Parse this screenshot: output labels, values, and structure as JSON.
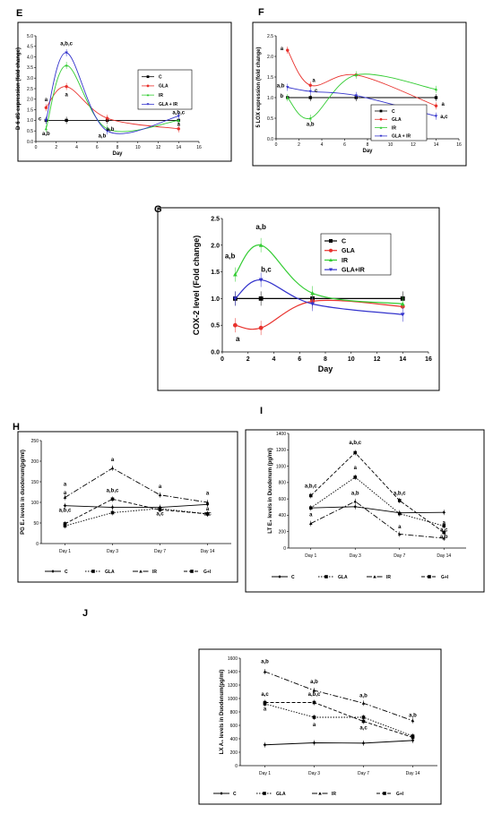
{
  "chart_data": [
    {
      "panel": "E",
      "type": "line",
      "ylabel": "D-6-dS expression (fold change)",
      "xlabel": "Day",
      "x_ticks": [
        "0",
        "2",
        "4",
        "6",
        "8",
        "10",
        "12",
        "14",
        "16"
      ],
      "y_ticks": [
        "0.0",
        "0.5",
        "1.0",
        "1.5",
        "2.0",
        "2.5",
        "3.0",
        "3.5",
        "4.0",
        "4.5",
        "5.0"
      ],
      "xlim": [
        0,
        16
      ],
      "ylim": [
        0,
        5
      ],
      "legend": {
        "position": "right",
        "entries": [
          "C",
          "GLA",
          "IR",
          "GLA + IR"
        ]
      },
      "colors": {
        "C": "#000000",
        "GLA": "#e8322d",
        "IR": "#33cc33",
        "GLA + IR": "#3333cc"
      },
      "series": [
        {
          "name": "C",
          "x": [
            1,
            3,
            7,
            14
          ],
          "y": [
            1.0,
            1.0,
            1.0,
            1.0
          ]
        },
        {
          "name": "GLA",
          "x": [
            1,
            3,
            7,
            14
          ],
          "y": [
            1.6,
            2.6,
            1.1,
            0.6
          ]
        },
        {
          "name": "IR",
          "x": [
            1,
            3,
            7,
            14
          ],
          "y": [
            0.6,
            3.6,
            0.6,
            1.0
          ]
        },
        {
          "name": "GLA + IR",
          "x": [
            1,
            3,
            7,
            14
          ],
          "y": [
            1.0,
            4.2,
            0.5,
            1.2
          ]
        }
      ],
      "annotations": [
        {
          "text": "a,b,c",
          "x": 3,
          "y": 4.55
        },
        {
          "text": "a",
          "x": 3,
          "y": 2.15
        },
        {
          "text": "a",
          "x": 1,
          "y": 1.9
        },
        {
          "text": "c",
          "x": 0.4,
          "y": 1.0
        },
        {
          "text": "a,b",
          "x": 1,
          "y": 0.3
        },
        {
          "text": "a,b",
          "x": 7.3,
          "y": 0.5
        },
        {
          "text": "a,b",
          "x": 6.5,
          "y": 0.2
        },
        {
          "text": "a,b,c",
          "x": 14,
          "y": 1.3
        },
        {
          "text": "a",
          "x": 14,
          "y": 0.75
        }
      ]
    },
    {
      "panel": "F",
      "type": "line",
      "ylabel": "5 LOX expression (fold change)",
      "xlabel": "Day",
      "x_ticks": [
        "0",
        "2",
        "4",
        "6",
        "8",
        "10",
        "12",
        "14",
        "16"
      ],
      "y_ticks": [
        "0.0",
        "0.5",
        "1.0",
        "1.5",
        "2.0",
        "2.5"
      ],
      "xlim": [
        0,
        16
      ],
      "ylim": [
        0,
        2.5
      ],
      "legend": {
        "position": "bottom-right",
        "entries": [
          "C",
          "GLA",
          "IR",
          "GLA + IR"
        ]
      },
      "colors": {
        "C": "#000000",
        "GLA": "#e8322d",
        "IR": "#33cc33",
        "GLA + IR": "#3333cc"
      },
      "series": [
        {
          "name": "C",
          "x": [
            1,
            3,
            7,
            14
          ],
          "y": [
            1.0,
            1.0,
            1.0,
            1.0
          ]
        },
        {
          "name": "GLA",
          "x": [
            1,
            3,
            7,
            14
          ],
          "y": [
            2.15,
            1.3,
            1.55,
            0.8
          ]
        },
        {
          "name": "IR",
          "x": [
            1,
            3,
            7,
            14
          ],
          "y": [
            1.0,
            0.5,
            1.55,
            1.2
          ]
        },
        {
          "name": "GLA + IR",
          "x": [
            1,
            3,
            7,
            14
          ],
          "y": [
            1.25,
            1.15,
            1.05,
            0.55
          ]
        }
      ],
      "annotations": [
        {
          "text": "a",
          "x": 0.5,
          "y": 2.15
        },
        {
          "text": "a",
          "x": 3.3,
          "y": 1.38
        },
        {
          "text": "a,b",
          "x": 0.4,
          "y": 1.25
        },
        {
          "text": "b",
          "x": 0.5,
          "y": 1.0
        },
        {
          "text": "c",
          "x": 3.5,
          "y": 1.13
        },
        {
          "text": "a,b",
          "x": 3,
          "y": 0.32
        },
        {
          "text": "a",
          "x": 14.6,
          "y": 0.8
        },
        {
          "text": "a,c",
          "x": 14.7,
          "y": 0.5
        }
      ]
    },
    {
      "panel": "G",
      "type": "line",
      "ylabel": "COX-2 level (Fold change)",
      "xlabel": "Day",
      "x_ticks": [
        "0",
        "2",
        "4",
        "6",
        "8",
        "10",
        "12",
        "14",
        "16"
      ],
      "y_ticks": [
        "0.0",
        "0.5",
        "1.0",
        "1.5",
        "2.0",
        "2.5"
      ],
      "xlim": [
        0,
        16
      ],
      "ylim": [
        0,
        2.5
      ],
      "legend": {
        "position": "right",
        "entries": [
          "C",
          "GLA",
          "IR",
          "GLA+IR"
        ]
      },
      "colors": {
        "C": "#000000",
        "GLA": "#e8322d",
        "IR": "#33cc33",
        "GLA+IR": "#3333cc"
      },
      "series": [
        {
          "name": "C",
          "x": [
            1,
            3,
            7,
            14
          ],
          "y": [
            1.0,
            1.0,
            1.0,
            1.0
          ]
        },
        {
          "name": "GLA",
          "x": [
            1,
            3,
            7,
            14
          ],
          "y": [
            0.5,
            0.45,
            0.95,
            0.85
          ]
        },
        {
          "name": "IR",
          "x": [
            1,
            3,
            7,
            14
          ],
          "y": [
            1.45,
            2.0,
            1.1,
            0.9
          ]
        },
        {
          "name": "GLA+IR",
          "x": [
            1,
            3,
            7,
            14
          ],
          "y": [
            1.0,
            1.35,
            0.9,
            0.7
          ]
        }
      ],
      "annotations": [
        {
          "text": "a,b",
          "x": 3,
          "y": 2.3
        },
        {
          "text": "a,b",
          "x": 0.6,
          "y": 1.75
        },
        {
          "text": "b,c",
          "x": 3.4,
          "y": 1.5
        },
        {
          "text": "a",
          "x": 1.2,
          "y": 0.2
        }
      ]
    },
    {
      "panel": "H",
      "type": "line",
      "ylabel": "PG E₂ levels in duodenum(pg/ml)",
      "xlabel": "",
      "categories": [
        "Day 1",
        "Day 3",
        "Day 7",
        "Day 14"
      ],
      "y_ticks": [
        "0",
        "50",
        "100",
        "150",
        "200",
        "250"
      ],
      "ylim": [
        0,
        250
      ],
      "legend": {
        "position": "bottom",
        "entries": [
          "C",
          "GLA",
          "IR",
          "G+I"
        ]
      },
      "series": [
        {
          "name": "C",
          "values": [
            92,
            88,
            88,
            95
          ]
        },
        {
          "name": "GLA",
          "values": [
            43,
            75,
            85,
            72
          ]
        },
        {
          "name": "IR",
          "values": [
            112,
            183,
            118,
            100
          ]
        },
        {
          "name": "G+I",
          "values": [
            48,
            108,
            82,
            72
          ]
        }
      ],
      "annotations": [
        {
          "text": "a",
          "cat": 0,
          "y": 140
        },
        {
          "text": "a",
          "cat": 0,
          "y": 120
        },
        {
          "text": "a,b,c",
          "cat": 0,
          "y": 77
        },
        {
          "text": "a",
          "cat": 1,
          "y": 200
        },
        {
          "text": "a,b,c",
          "cat": 1,
          "y": 125
        },
        {
          "text": "a",
          "cat": 2,
          "y": 135
        },
        {
          "text": "a,c",
          "cat": 2,
          "y": 68
        },
        {
          "text": "a",
          "cat": 3,
          "y": 118
        },
        {
          "text": "a",
          "cat": 3,
          "y": 80
        },
        {
          "text": "a,c",
          "cat": 3,
          "y": 68
        }
      ]
    },
    {
      "panel": "I",
      "type": "line",
      "ylabel": "LT E₄ levels in Duodenum (pg/ml)",
      "xlabel": "",
      "categories": [
        "Day 1",
        "Day 3",
        "Day 7",
        "Day 14"
      ],
      "y_ticks": [
        "0",
        "200",
        "400",
        "600",
        "800",
        "1000",
        "1200",
        "1400"
      ],
      "ylim": [
        0,
        1400
      ],
      "legend": {
        "position": "bottom",
        "entries": [
          "C",
          "GLA",
          "IR",
          "G+I"
        ]
      },
      "series": [
        {
          "name": "C",
          "values": [
            490,
            505,
            430,
            435
          ]
        },
        {
          "name": "GLA",
          "values": [
            490,
            865,
            420,
            270
          ]
        },
        {
          "name": "IR",
          "values": [
            300,
            570,
            170,
            120
          ]
        },
        {
          "name": "G+I",
          "values": [
            640,
            1165,
            580,
            190
          ]
        }
      ],
      "annotations": [
        {
          "text": "a,b,c",
          "cat": 0,
          "y": 740
        },
        {
          "text": "a",
          "cat": 0,
          "y": 390
        },
        {
          "text": "a,b,c",
          "cat": 1,
          "y": 1270
        },
        {
          "text": "a",
          "cat": 1,
          "y": 960
        },
        {
          "text": "a,b",
          "cat": 1,
          "y": 650
        },
        {
          "text": "a,b,c",
          "cat": 2,
          "y": 650
        },
        {
          "text": "a",
          "cat": 2,
          "y": 240
        },
        {
          "text": "a",
          "cat": 3,
          "y": 290
        },
        {
          "text": "a,c",
          "cat": 3,
          "y": 200
        },
        {
          "text": "a,b",
          "cat": 3,
          "y": 120
        }
      ]
    },
    {
      "panel": "J",
      "type": "line",
      "ylabel": "LX A₄ levels in Duodenum(pg/ml)",
      "xlabel": "",
      "categories": [
        "Day 1",
        "Day 3",
        "Day 7",
        "Day 14"
      ],
      "y_ticks": [
        "0",
        "200",
        "400",
        "600",
        "800",
        "1000",
        "1200",
        "1400",
        "1600"
      ],
      "ylim": [
        0,
        1600
      ],
      "legend": {
        "position": "bottom",
        "entries": [
          "C",
          "GLA",
          "IR",
          "G+I"
        ]
      },
      "series": [
        {
          "name": "C",
          "values": [
            310,
            340,
            335,
            375
          ]
        },
        {
          "name": "GLA",
          "values": [
            920,
            720,
            720,
            440
          ]
        },
        {
          "name": "IR",
          "values": [
            1400,
            1120,
            930,
            670
          ]
        },
        {
          "name": "G+I",
          "values": [
            940,
            940,
            660,
            420
          ]
        }
      ],
      "annotations": [
        {
          "text": "a,b",
          "cat": 0,
          "y": 1530
        },
        {
          "text": "a,c",
          "cat": 0,
          "y": 1040
        },
        {
          "text": "a",
          "cat": 0,
          "y": 820
        },
        {
          "text": "a,b",
          "cat": 1,
          "y": 1230
        },
        {
          "text": "a,b,c",
          "cat": 1,
          "y": 1040
        },
        {
          "text": "a",
          "cat": 1,
          "y": 590
        },
        {
          "text": "a,b",
          "cat": 2,
          "y": 1020
        },
        {
          "text": "a,c",
          "cat": 2,
          "y": 540
        },
        {
          "text": "a,b",
          "cat": 3,
          "y": 730
        }
      ]
    }
  ]
}
